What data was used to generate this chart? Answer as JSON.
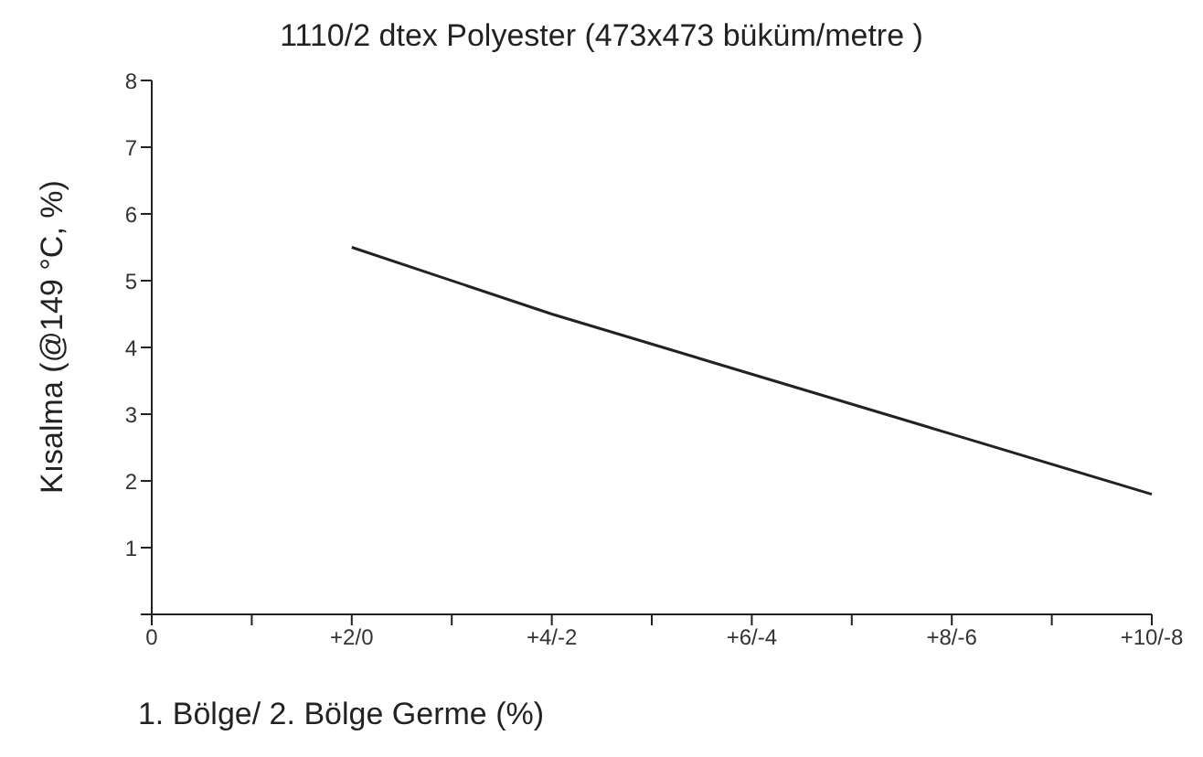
{
  "chart_data": {
    "type": "line",
    "title": "1110/2 dtex Polyester (473x473 büküm/metre )",
    "xlabel": "1. Bölge/ 2. Bölge Germe (%)",
    "ylabel": "Kısalma (@149 °C, %)",
    "categories": [
      "0",
      null,
      "+2/0",
      null,
      "+4/-2",
      null,
      "+6/-4",
      null,
      "+8/-6",
      null,
      "+10/-8"
    ],
    "series": [
      {
        "color": "#222222",
        "values": [
          null,
          null,
          5.5,
          null,
          4.5,
          null,
          3.6,
          null,
          2.7,
          null,
          1.8
        ]
      }
    ],
    "ylim": [
      0,
      8
    ],
    "yticks": [
      {
        "value": 0,
        "label": null
      },
      1,
      2,
      3,
      4,
      5,
      6,
      7,
      8
    ],
    "grid": false,
    "legend": false,
    "marker": "none",
    "line_style": "solid"
  }
}
